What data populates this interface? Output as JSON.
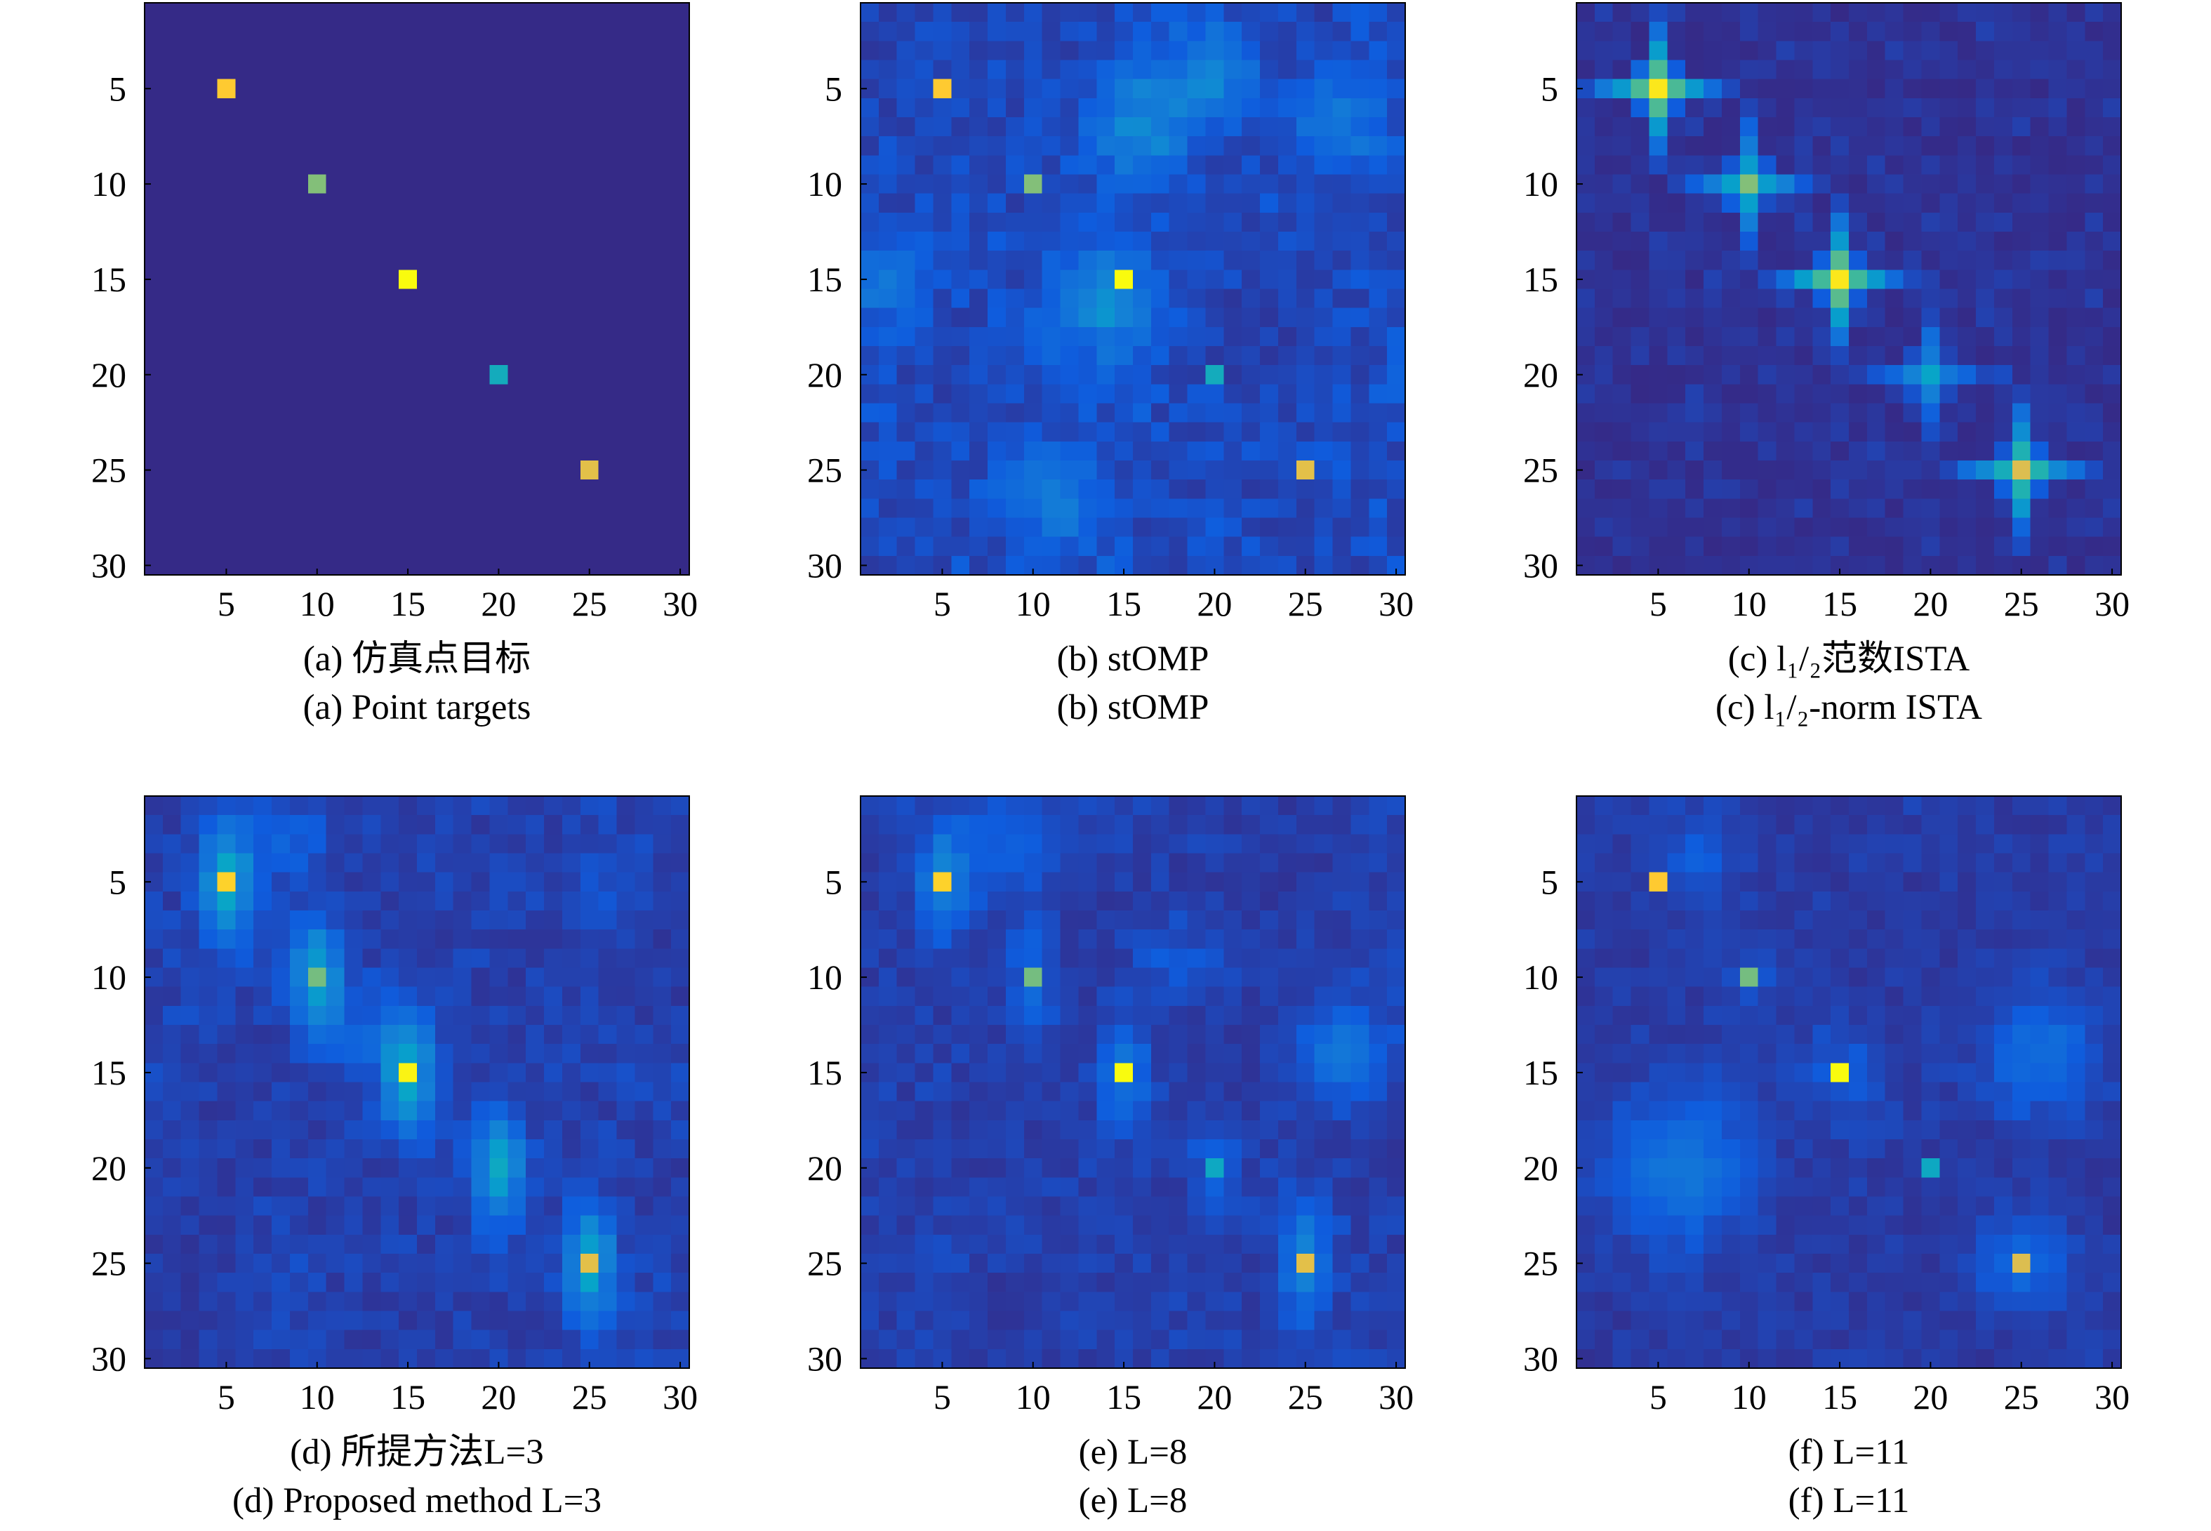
{
  "colormap": {
    "background": "#352a87",
    "stops": [
      "#352a87",
      "#0f5cdd",
      "#1481d6",
      "#06a4ca",
      "#2eb7a4",
      "#87bf77",
      "#d1bb59",
      "#fec832",
      "#f9fb0e"
    ]
  },
  "chart_data": [
    {
      "type": "heatmap",
      "x_ticks": [
        5,
        10,
        15,
        20,
        25,
        30
      ],
      "y_ticks": [
        5,
        10,
        15,
        20,
        25,
        30
      ],
      "xlim": [
        0.5,
        30.5
      ],
      "ylim": [
        0.5,
        30.5
      ],
      "caption_cn": "(a) 仿真点目标",
      "caption_en": "(a) Point targets",
      "peaks": [
        [
          5,
          5,
          0.88
        ],
        [
          10,
          10,
          0.62
        ],
        [
          15,
          15,
          1.0
        ],
        [
          20,
          20,
          0.42
        ],
        [
          25,
          25,
          0.8
        ]
      ],
      "clutter": {
        "amp": 0.0,
        "smooth": 0,
        "seed": 1
      },
      "blobs": []
    },
    {
      "type": "heatmap",
      "x_ticks": [
        5,
        10,
        15,
        20,
        25,
        30
      ],
      "y_ticks": [
        5,
        10,
        15,
        20,
        25,
        30
      ],
      "xlim": [
        0.5,
        30.5
      ],
      "ylim": [
        0.5,
        30.5
      ],
      "caption_cn": "(b) stOMP",
      "caption_en": "(b) stOMP",
      "peaks": [
        [
          5,
          5,
          0.88
        ],
        [
          10,
          10,
          0.62
        ],
        [
          15,
          15,
          1.0
        ],
        [
          20,
          20,
          0.42
        ],
        [
          25,
          25,
          0.8
        ]
      ],
      "clutter": {
        "amp": 0.19,
        "smooth": 2,
        "seed": 7
      },
      "blobs": [
        [
          16,
          7,
          2.0,
          0.2
        ],
        [
          14,
          16,
          2.0,
          0.22
        ],
        [
          20,
          4,
          1.5,
          0.2
        ],
        [
          2,
          15,
          1.5,
          0.15
        ],
        [
          11,
          26,
          1.8,
          0.16
        ],
        [
          27,
          7,
          1.8,
          0.14
        ]
      ]
    },
    {
      "type": "heatmap",
      "x_ticks": [
        5,
        10,
        15,
        20,
        25,
        30
      ],
      "y_ticks": [
        5,
        10,
        15,
        20,
        25,
        30
      ],
      "xlim": [
        0.5,
        30.5
      ],
      "ylim": [
        0.5,
        30.5
      ],
      "caption_cn": "(c) l₁/₂范数ISTA",
      "caption_en": "(c) l₁/₂-norm ISTA",
      "peaks": [
        [
          5,
          5,
          0.95
        ],
        [
          10,
          10,
          0.62
        ],
        [
          15,
          15,
          0.95
        ],
        [
          20,
          20,
          0.38
        ],
        [
          25,
          25,
          0.78
        ]
      ],
      "crosses": [
        [
          5,
          5,
          0.95
        ],
        [
          10,
          10,
          0.62
        ],
        [
          15,
          15,
          0.95
        ],
        [
          20,
          20,
          0.38
        ],
        [
          25,
          25,
          0.78
        ]
      ],
      "clutter": {
        "amp": 0.05,
        "smooth": 0,
        "seed": 3
      },
      "blobs": []
    },
    {
      "type": "heatmap",
      "x_ticks": [
        5,
        10,
        15,
        20,
        25,
        30
      ],
      "y_ticks": [
        5,
        10,
        15,
        20,
        25,
        30
      ],
      "xlim": [
        0.5,
        30.5
      ],
      "ylim": [
        0.5,
        30.5
      ],
      "caption_cn": "(d) 所提方法L=3",
      "caption_en": "(d) Proposed method L=3",
      "peaks": [
        [
          5,
          5,
          0.9
        ],
        [
          10,
          10,
          0.6
        ],
        [
          15,
          15,
          0.98
        ],
        [
          20,
          20,
          0.4
        ],
        [
          25,
          25,
          0.8
        ]
      ],
      "vblobs": [
        [
          5,
          5,
          0.35
        ],
        [
          10,
          10,
          0.32
        ],
        [
          15,
          15,
          0.33
        ],
        [
          20,
          20,
          0.3
        ],
        [
          25,
          25,
          0.33
        ]
      ],
      "clutter": {
        "amp": 0.13,
        "smooth": 2,
        "seed": 11
      },
      "blobs": [
        [
          8,
          3,
          1.6,
          0.08
        ],
        [
          13,
          13,
          1.8,
          0.08
        ],
        [
          26,
          6,
          1.5,
          0.06
        ]
      ]
    },
    {
      "type": "heatmap",
      "x_ticks": [
        5,
        10,
        15,
        20,
        25,
        30
      ],
      "y_ticks": [
        5,
        10,
        15,
        20,
        25,
        30
      ],
      "xlim": [
        0.5,
        30.5
      ],
      "ylim": [
        0.5,
        30.5
      ],
      "caption_cn": "(e) L=8",
      "caption_en": "(e) L=8",
      "peaks": [
        [
          5,
          5,
          0.9
        ],
        [
          10,
          10,
          0.6
        ],
        [
          15,
          15,
          1.0
        ],
        [
          20,
          20,
          0.4
        ],
        [
          25,
          25,
          0.8
        ]
      ],
      "vblobs": [
        [
          5,
          5,
          0.22
        ],
        [
          10,
          10,
          0.12
        ],
        [
          15,
          15,
          0.15
        ],
        [
          20,
          20,
          0.08
        ],
        [
          25,
          25,
          0.2
        ]
      ],
      "clutter": {
        "amp": 0.12,
        "smooth": 2,
        "seed": 23
      },
      "blobs": [
        [
          9,
          3,
          1.8,
          0.1
        ],
        [
          27,
          14,
          1.8,
          0.16
        ],
        [
          18,
          9,
          1.4,
          0.06
        ]
      ]
    },
    {
      "type": "heatmap",
      "x_ticks": [
        5,
        10,
        15,
        20,
        25,
        30
      ],
      "y_ticks": [
        5,
        10,
        15,
        20,
        25,
        30
      ],
      "xlim": [
        0.5,
        30.5
      ],
      "ylim": [
        0.5,
        30.5
      ],
      "caption_cn": "(f) L=11",
      "caption_en": "(f) L=11",
      "peaks": [
        [
          5,
          5,
          0.88
        ],
        [
          10,
          10,
          0.6
        ],
        [
          15,
          15,
          1.0
        ],
        [
          20,
          20,
          0.4
        ],
        [
          25,
          25,
          0.78
        ]
      ],
      "vblobs": [],
      "clutter": {
        "amp": 0.1,
        "smooth": 2,
        "seed": 31
      },
      "blobs": [
        [
          6,
          20,
          2.6,
          0.16
        ],
        [
          26,
          14,
          2.0,
          0.14
        ],
        [
          25,
          25,
          1.8,
          0.12
        ],
        [
          15,
          15,
          1.6,
          0.08
        ],
        [
          7,
          4,
          1.6,
          0.08
        ],
        [
          10,
          10,
          1.2,
          0.06
        ]
      ]
    }
  ]
}
